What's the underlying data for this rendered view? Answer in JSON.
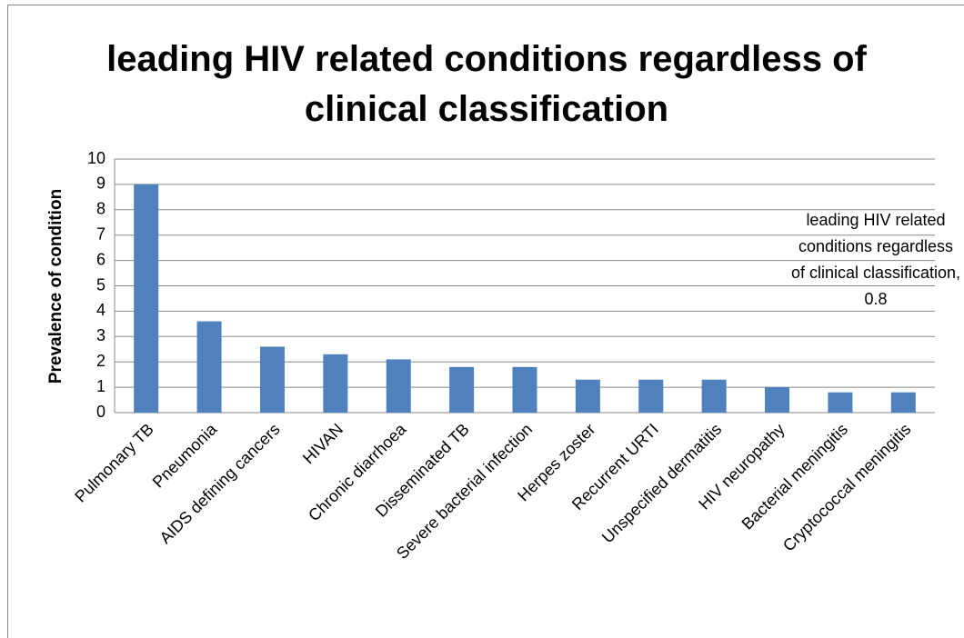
{
  "chart_data": {
    "type": "bar",
    "title": "leading HIV related conditions regardless of clinical classification",
    "y_label": "Prevalence of condition",
    "categories": [
      "Pulmonary TB",
      "Pneumonia",
      "AIDS defining cancers",
      "HIVAN",
      "Chronic diarrhoea",
      "Disseminated TB",
      "Severe bacterial infection",
      "Herpes zoster",
      "Recurrent URTI",
      "Unspecified dermatitis",
      "HIV neuropathy",
      "Bacterial meningitis",
      "Cryptococcal meningitis"
    ],
    "values": [
      9,
      3.6,
      2.6,
      2.3,
      2.1,
      1.8,
      1.8,
      1.3,
      1.3,
      1.3,
      1.0,
      0.8,
      0.8
    ],
    "annotation": "leading HIV related conditions regardless of clinical classification, 0.8",
    "color": "#4f81bd",
    "ylim": [
      0,
      10
    ],
    "yticks": [
      0,
      1,
      2,
      3,
      4,
      5,
      6,
      7,
      8,
      9,
      10
    ],
    "grid": true
  }
}
